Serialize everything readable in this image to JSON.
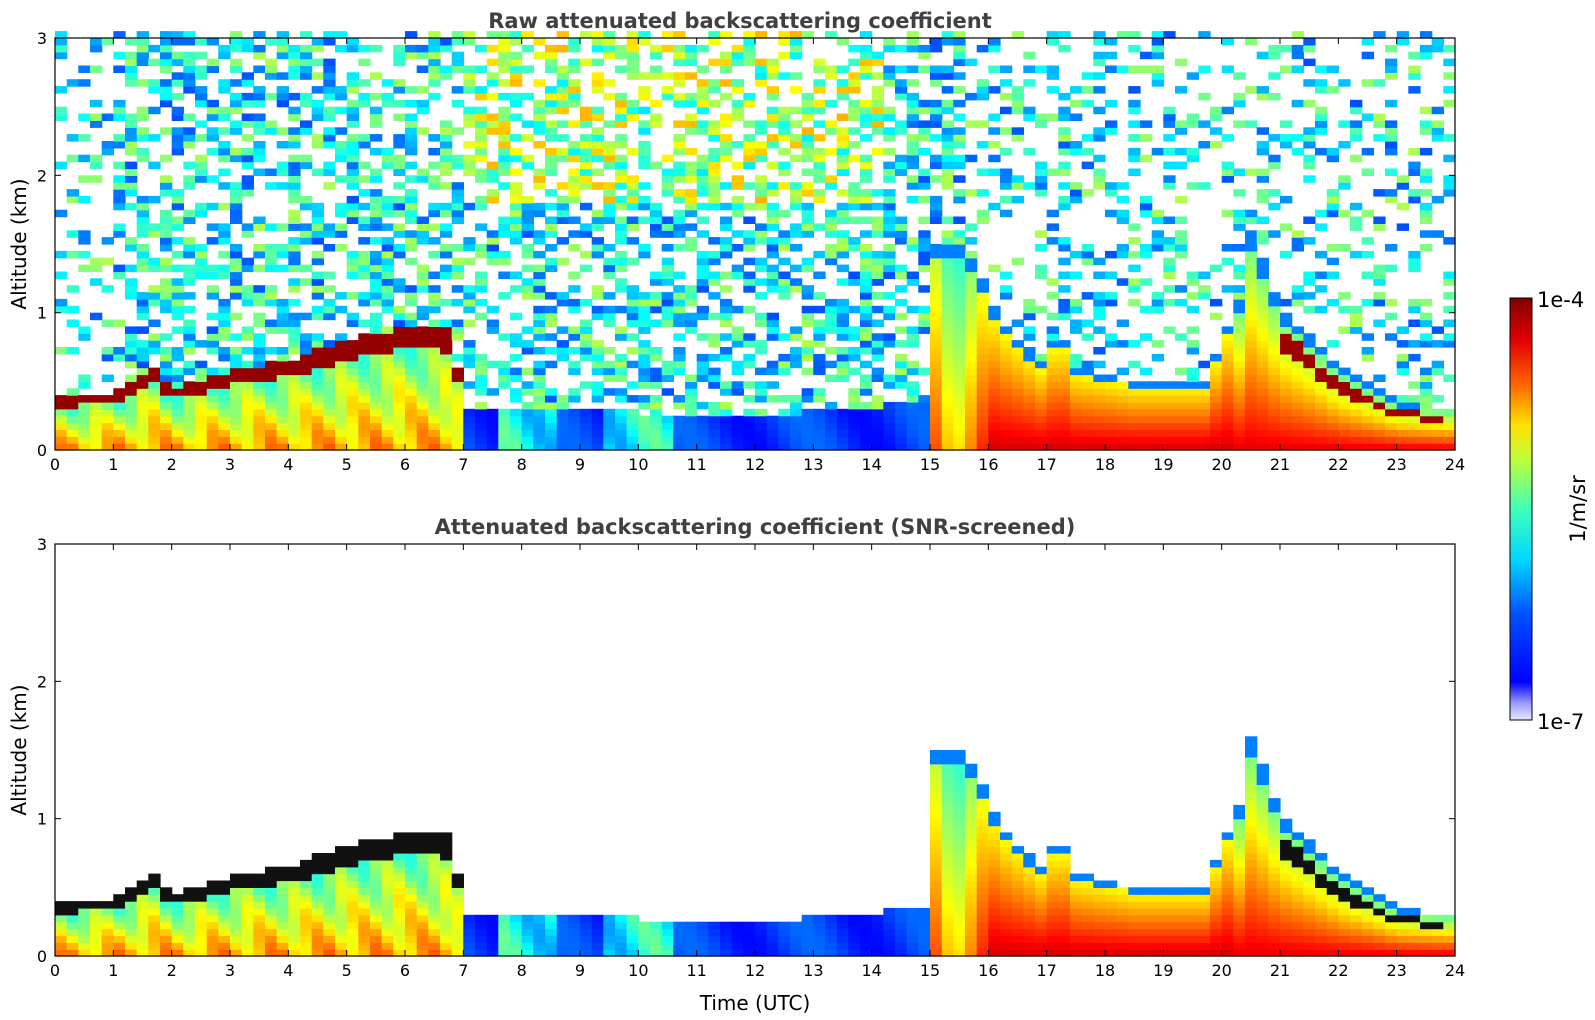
{
  "chart_data": [
    {
      "type": "heatmap",
      "title": "Raw attenuated backscattering coefficient",
      "xlabel": "",
      "ylabel": "Altitude (km)",
      "xlim": [
        0,
        24
      ],
      "ylim": [
        0,
        3
      ],
      "xticks": [
        "0",
        "1",
        "2",
        "3",
        "4",
        "5",
        "6",
        "7",
        "8",
        "9",
        "10",
        "11",
        "12",
        "13",
        "14",
        "15",
        "16",
        "17",
        "18",
        "19",
        "20",
        "21",
        "22",
        "23",
        "24"
      ],
      "yticks": [
        "0",
        "1",
        "2",
        "3"
      ],
      "screened": false,
      "colormap": "jet",
      "boundary_layer_top_km": [
        {
          "t": 0.0,
          "h": 0.38
        },
        {
          "t": 1.0,
          "h": 0.42
        },
        {
          "t": 1.7,
          "h": 0.62
        },
        {
          "t": 2.0,
          "h": 0.45
        },
        {
          "t": 3.0,
          "h": 0.58
        },
        {
          "t": 4.0,
          "h": 0.65
        },
        {
          "t": 5.0,
          "h": 0.8
        },
        {
          "t": 6.0,
          "h": 0.9
        },
        {
          "t": 6.8,
          "h": 0.88
        },
        {
          "t": 7.0,
          "h": 0.3
        },
        {
          "t": 8.0,
          "h": 0.3
        },
        {
          "t": 12.0,
          "h": 0.25
        },
        {
          "t": 14.9,
          "h": 0.35
        },
        {
          "t": 15.0,
          "h": 1.5
        },
        {
          "t": 15.6,
          "h": 1.5
        },
        {
          "t": 16.2,
          "h": 0.95
        },
        {
          "t": 17.0,
          "h": 0.6
        },
        {
          "t": 17.2,
          "h": 1.0
        },
        {
          "t": 17.4,
          "h": 0.62
        },
        {
          "t": 18.5,
          "h": 0.5
        },
        {
          "t": 19.7,
          "h": 0.5
        },
        {
          "t": 20.3,
          "h": 1.1
        },
        {
          "t": 20.5,
          "h": 1.6
        },
        {
          "t": 21.0,
          "h": 1.05
        },
        {
          "t": 22.0,
          "h": 0.6
        },
        {
          "t": 23.0,
          "h": 0.35
        },
        {
          "t": 23.8,
          "h": 0.3
        }
      ]
    },
    {
      "type": "heatmap",
      "title": "Attenuated backscattering coefficient (SNR-screened)",
      "xlabel": "Time (UTC)",
      "ylabel": "Altitude (km)",
      "xlim": [
        0,
        24
      ],
      "ylim": [
        0,
        3
      ],
      "xticks": [
        "0",
        "1",
        "2",
        "3",
        "4",
        "5",
        "6",
        "7",
        "8",
        "9",
        "10",
        "11",
        "12",
        "13",
        "14",
        "15",
        "16",
        "17",
        "18",
        "19",
        "20",
        "21",
        "22",
        "23",
        "24"
      ],
      "yticks": [
        "0",
        "1",
        "2",
        "3"
      ],
      "screened": true,
      "colormap": "jet"
    }
  ],
  "colorbar": {
    "max_label": "1e-4",
    "min_label": "1e-7",
    "unit_label": "1/m/sr",
    "colors": [
      "#000080",
      "#0000ff",
      "#00ffff",
      "#ffff00",
      "#ff0000",
      "#800000"
    ]
  }
}
